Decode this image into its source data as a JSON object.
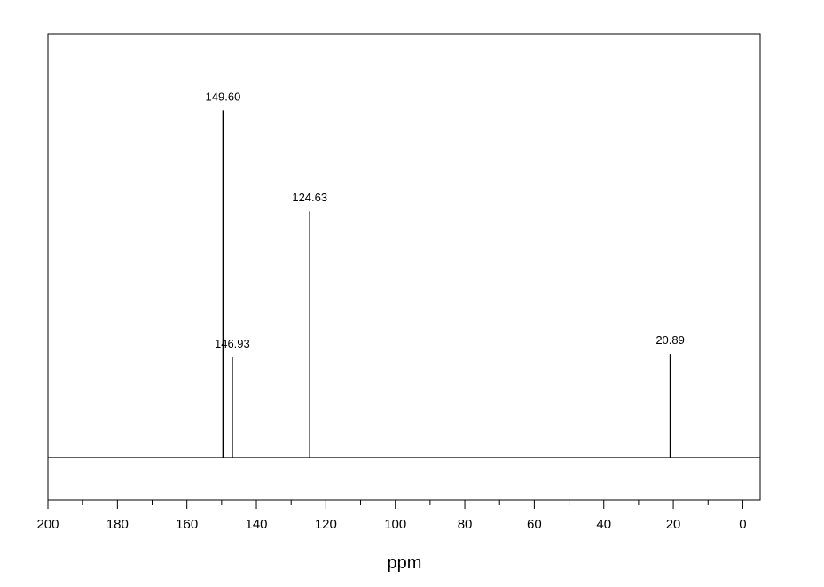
{
  "chart_data": {
    "type": "line",
    "title": "",
    "xlabel": "ppm",
    "ylabel": "",
    "xlim": [
      200,
      -5
    ],
    "x_reversed": true,
    "ylim": [
      -0.12,
      1.22
    ],
    "grid": false,
    "x_ticks": [
      {
        "value": 200,
        "label": "200"
      },
      {
        "value": 180,
        "label": "180"
      },
      {
        "value": 160,
        "label": "160"
      },
      {
        "value": 140,
        "label": "140"
      },
      {
        "value": 120,
        "label": "120"
      },
      {
        "value": 100,
        "label": "100"
      },
      {
        "value": 80,
        "label": "80"
      },
      {
        "value": 60,
        "label": "60"
      },
      {
        "value": 40,
        "label": "40"
      },
      {
        "value": 20,
        "label": "20"
      },
      {
        "value": 0,
        "label": "0"
      }
    ],
    "peaks": [
      {
        "shift": 149.6,
        "height": 1.0,
        "label": "149.60"
      },
      {
        "shift": 146.93,
        "height": 0.29,
        "label": "146.93"
      },
      {
        "shift": 124.63,
        "height": 0.71,
        "label": "124.63"
      },
      {
        "shift": 20.89,
        "height": 0.3,
        "label": "20.89"
      }
    ],
    "line_color": "#000000"
  }
}
